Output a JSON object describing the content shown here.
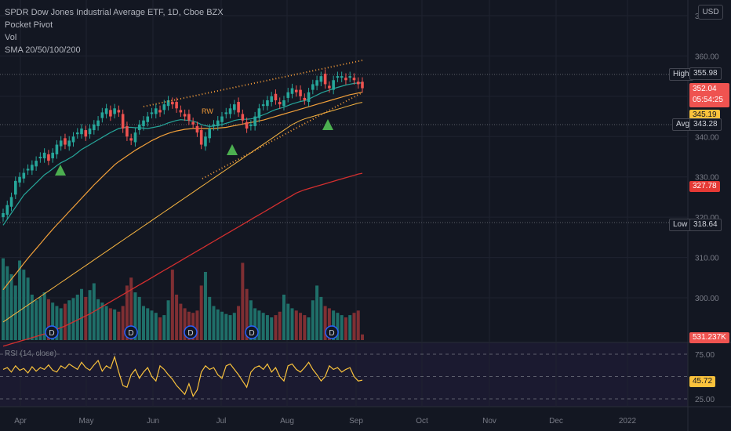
{
  "header": {
    "title": "SPDR Dow Jones Industrial Average ETF, 1D, Cboe BZX",
    "indicators": [
      "Pocket Pivot",
      "Vol",
      "SMA 20/50/100/200"
    ],
    "currency": "USD"
  },
  "colors": {
    "background": "#131722",
    "up": "#26a69a",
    "down": "#ef5350",
    "sma20": "#26a69a",
    "sma50": "#f2a03a",
    "sma100": "#f7b541",
    "sma200": "#d32f2f",
    "rsi": "#f9c23c",
    "pivot": "#4caf50",
    "channel": "#f29a38"
  },
  "chart_data": {
    "type": "candlestick",
    "x_tick_labels": [
      "Apr",
      "May",
      "Jun",
      "Jul",
      "Aug",
      "Sep",
      "Oct",
      "Nov",
      "Dec",
      "2022"
    ],
    "y_tick_labels": [
      "370.00",
      "360.00",
      "350.00",
      "340.00",
      "330.00",
      "320.00",
      "310.00",
      "300.00"
    ],
    "price_markers": [
      {
        "label": "High",
        "value": "355.98"
      },
      {
        "label": "",
        "value": "352.04"
      },
      {
        "label": "",
        "value": "05:54:25"
      },
      {
        "label": "",
        "value": "345.19"
      },
      {
        "label": "Avg",
        "value": "343.28"
      },
      {
        "label": "",
        "value": "327.78"
      },
      {
        "label": "Low",
        "value": "318.64"
      }
    ],
    "volume_marker": "531.237K",
    "annotation": "RW",
    "dividend_marker": "D",
    "rsi": {
      "label": "RSI (14, close)",
      "ticks": [
        "75.00",
        "25.00"
      ],
      "last": "45.72"
    },
    "close_series": [
      321,
      323,
      325,
      329,
      330,
      331,
      332,
      333,
      334,
      335,
      336,
      334,
      336,
      338,
      339,
      338,
      339,
      340,
      341,
      342,
      340,
      342,
      343,
      344,
      346,
      347,
      345,
      347,
      346,
      342,
      340,
      339,
      341,
      343,
      344,
      345,
      346,
      347,
      346,
      348,
      349,
      348,
      347,
      346,
      345,
      344,
      343,
      341,
      338,
      340,
      342,
      343,
      344,
      345,
      346,
      347,
      348,
      346,
      344,
      342,
      343,
      345,
      347,
      348,
      349,
      350,
      349,
      348,
      349,
      351,
      352,
      351,
      350,
      349,
      351,
      353,
      354,
      355,
      353,
      352,
      354,
      355,
      355,
      354,
      355,
      354,
      353,
      352
    ],
    "sma20": [
      318,
      319.5,
      321,
      322.5,
      324,
      325.5,
      326.5,
      327.5,
      328.5,
      329.5,
      330.5,
      331.2,
      332,
      332.8,
      333.5,
      334,
      334.6,
      335.2,
      336,
      336.8,
      337.4,
      338,
      338.6,
      339.2,
      339.8,
      340.4,
      341,
      341.5,
      342,
      342.2,
      342.3,
      342.3,
      342.2,
      342.2,
      342.1,
      342,
      342.2,
      342.4,
      342.6,
      343,
      343.4,
      343.7,
      344,
      344.2,
      344.1,
      344,
      343.8,
      343.5,
      343,
      342.7,
      342.5,
      342.6,
      342.8,
      343,
      343.3,
      343.6,
      344,
      344.2,
      344.3,
      344.3,
      344.4,
      344.6,
      345,
      345.4,
      345.8,
      346.3,
      346.7,
      347,
      347.3,
      347.7,
      348.1,
      348.4,
      348.7,
      348.9,
      349.3,
      349.8,
      350.3,
      350.8,
      351.2,
      351.5,
      351.9,
      352.2,
      352.5,
      352.8,
      353,
      353.2,
      353.3,
      353.3
    ],
    "sma50": [
      302,
      303.3,
      304.6,
      305.9,
      307.2,
      308.5,
      309.8,
      311,
      312.2,
      313.4,
      314.6,
      315.8,
      317,
      318.1,
      319.2,
      320.3,
      321.4,
      322.5,
      323.6,
      324.7,
      325.8,
      326.9,
      328,
      329,
      330,
      331,
      332,
      333,
      333.8,
      334.5,
      335.2,
      335.9,
      336.6,
      337.2,
      337.8,
      338.4,
      339,
      339.5,
      340,
      340.4,
      340.8,
      341.1,
      341.4,
      341.6,
      341.8,
      341.9,
      342,
      342,
      342,
      342,
      342,
      342,
      342.1,
      342.2,
      342.3,
      342.5,
      342.7,
      342.9,
      343.1,
      343.3,
      343.5,
      343.7,
      343.9,
      344.1,
      344.4,
      344.7,
      345,
      345.3,
      345.6,
      345.9,
      346.2,
      346.5,
      346.8,
      347.1,
      347.4,
      347.7,
      348,
      348.3,
      348.6,
      348.9,
      349.2,
      349.5,
      349.8,
      350.1,
      350.4,
      350.6,
      350.8,
      351
    ],
    "sma100": [
      294,
      294.7,
      295.4,
      296.1,
      296.8,
      297.5,
      298.2,
      298.9,
      299.6,
      300.3,
      301,
      301.7,
      302.4,
      303.1,
      303.8,
      304.5,
      305.2,
      305.9,
      306.6,
      307.3,
      308,
      308.7,
      309.4,
      310.1,
      310.8,
      311.5,
      312.2,
      312.9,
      313.6,
      314.3,
      315,
      315.7,
      316.4,
      317.1,
      317.8,
      318.5,
      319.2,
      319.9,
      320.6,
      321.3,
      322,
      322.7,
      323.4,
      324.1,
      324.8,
      325.5,
      326.2,
      326.9,
      327.6,
      328.3,
      329,
      329.7,
      330.4,
      331.1,
      331.8,
      332.5,
      333.2,
      333.9,
      334.6,
      335.3,
      336,
      336.7,
      337.4,
      338.1,
      338.8,
      339.5,
      340.2,
      340.9,
      341.6,
      342.3,
      343,
      343.5,
      344,
      344.4,
      344.7,
      345,
      345.3,
      345.6,
      345.9,
      346.2,
      346.5,
      346.8,
      347.1,
      347.4,
      347.7,
      348,
      348.3,
      348.5
    ],
    "sma200": [
      288,
      288.3,
      288.6,
      288.9,
      289.2,
      289.5,
      289.8,
      290.1,
      290.4,
      290.7,
      291,
      291.4,
      291.8,
      292.2,
      292.6,
      293,
      293.5,
      294,
      294.5,
      295,
      295.5,
      296,
      296.6,
      297.2,
      297.8,
      298.4,
      299,
      299.6,
      300.2,
      300.8,
      301.4,
      302,
      302.6,
      303.2,
      303.8,
      304.4,
      305,
      305.6,
      306.2,
      306.8,
      307.4,
      308,
      308.6,
      309.2,
      309.8,
      310.4,
      311,
      311.6,
      312.2,
      312.8,
      313.4,
      314,
      314.6,
      315.2,
      315.8,
      316.4,
      317,
      317.6,
      318.2,
      318.8,
      319.4,
      320,
      320.6,
      321.2,
      321.8,
      322.4,
      323,
      323.6,
      324.2,
      324.8,
      325.4,
      326,
      326.4,
      326.8,
      327.1,
      327.4,
      327.7,
      328,
      328.3,
      328.6,
      328.9,
      329.2,
      329.5,
      329.8,
      330.1,
      330.4,
      330.7,
      330.9
    ],
    "volume": [
      72,
      65,
      58,
      48,
      70,
      62,
      55,
      40,
      35,
      38,
      42,
      36,
      33,
      30,
      28,
      32,
      35,
      37,
      40,
      45,
      38,
      44,
      50,
      36,
      33,
      30,
      28,
      27,
      25,
      30,
      48,
      55,
      42,
      38,
      30,
      28,
      26,
      24,
      20,
      22,
      35,
      62,
      40,
      32,
      28,
      25,
      24,
      26,
      48,
      60,
      38,
      30,
      27,
      25,
      23,
      22,
      24,
      30,
      68,
      45,
      35,
      28,
      26,
      24,
      22,
      20,
      22,
      25,
      40,
      32,
      28,
      26,
      24,
      22,
      20,
      35,
      48,
      38,
      30,
      28,
      26,
      24,
      22,
      20,
      22,
      24,
      26,
      5
    ],
    "rsi_series": [
      58,
      60,
      55,
      62,
      57,
      59,
      54,
      61,
      56,
      60,
      58,
      63,
      57,
      55,
      62,
      59,
      64,
      61,
      58,
      66,
      60,
      57,
      63,
      68,
      56,
      62,
      59,
      72,
      55,
      40,
      38,
      52,
      58,
      48,
      55,
      60,
      50,
      45,
      62,
      58,
      52,
      47,
      40,
      35,
      30,
      42,
      28,
      35,
      55,
      62,
      58,
      60,
      52,
      48,
      62,
      64,
      58,
      52,
      45,
      38,
      55,
      60,
      62,
      58,
      64,
      55,
      60,
      50,
      45,
      62,
      64,
      58,
      55,
      60,
      66,
      58,
      52,
      45,
      50,
      62,
      58,
      60,
      55,
      58,
      60,
      50,
      45,
      46
    ]
  }
}
